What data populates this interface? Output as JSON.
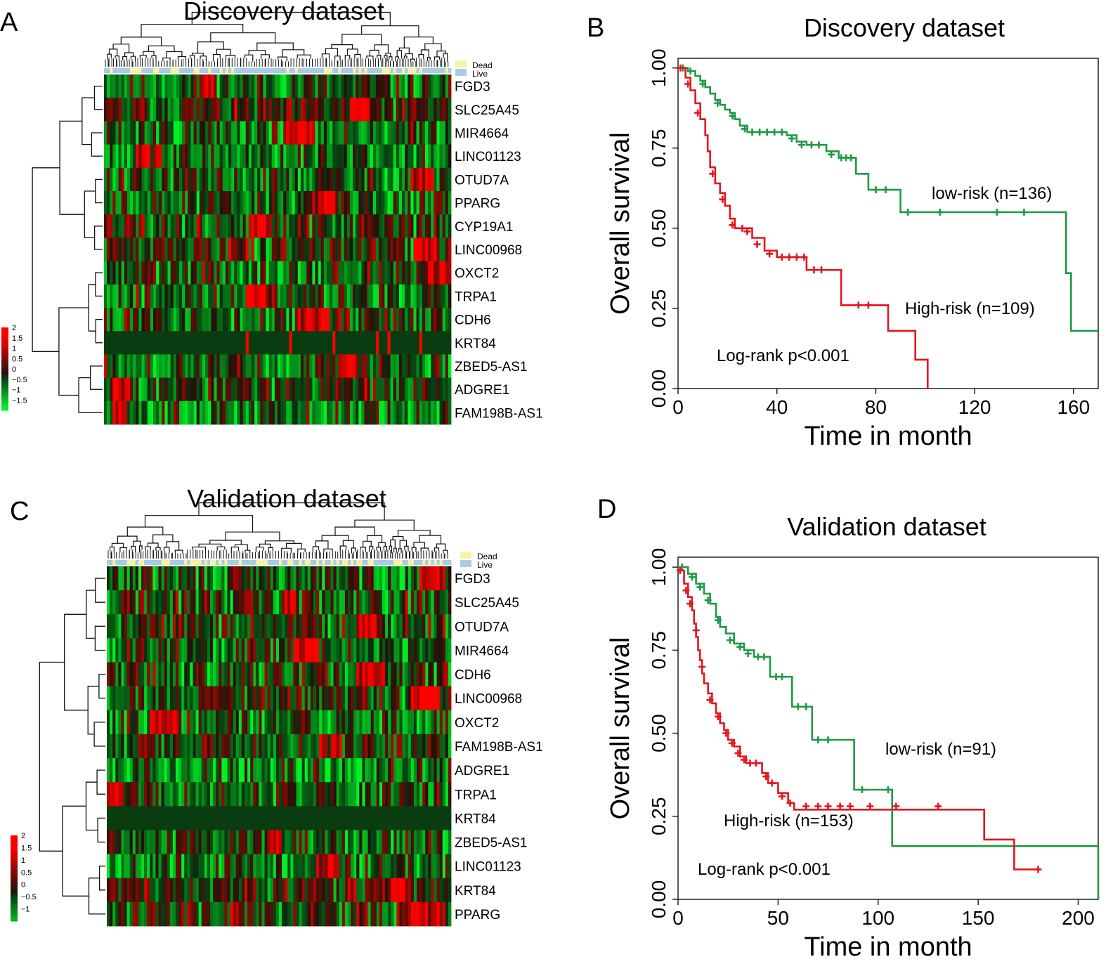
{
  "panels": {
    "A": {
      "letter": "A",
      "title": "Discovery dataset"
    },
    "B": {
      "letter": "B"
    },
    "C": {
      "letter": "C",
      "title": "Validation dataset"
    },
    "D": {
      "letter": "D"
    }
  },
  "heatmap_legend": {
    "dead": "Dead",
    "live": "Live"
  },
  "colors": {
    "high_risk": "#e4161e",
    "low_risk": "#1f9a45",
    "dead": "#f7f3a6",
    "live": "#a8cde3",
    "heat_high": "#ff1a1a",
    "heat_low": "#22ee22",
    "heat_mid": "#000000"
  },
  "chart_data": [
    {
      "type": "heatmap",
      "panel": "A",
      "title": "Discovery dataset",
      "rows": [
        "FGD3",
        "SLC25A45",
        "MIR4664",
        "LINC01123",
        "OTUD7A",
        "PPARG",
        "CYP19A1",
        "LINC00968",
        "OXCT2",
        "TRPA1",
        "CDH6",
        "KRT84",
        "ZBED5-AS1",
        "ADGRE1",
        "FAM198B-AS1"
      ],
      "color_scale": {
        "ticks": [
          "2",
          "1.5",
          "1",
          "0.5",
          "0",
          "−0.5",
          "−1",
          "−1.5"
        ],
        "range": [
          -1.5,
          2
        ]
      },
      "annotation_legend": [
        "Dead",
        "Live"
      ]
    },
    {
      "type": "line",
      "panel": "B",
      "title": "Discovery dataset",
      "xlabel": "Time in month",
      "ylabel": "Overall survival",
      "xlim": [
        0,
        170
      ],
      "ylim": [
        0,
        1.03
      ],
      "xticks": [
        0,
        40,
        80,
        120,
        160
      ],
      "xtick_labels": [
        "0",
        "40",
        "80",
        "120",
        "160"
      ],
      "yticks": [
        0,
        0.25,
        0.5,
        0.75,
        1
      ],
      "ytick_labels": [
        "0.00",
        "0.25",
        "0.50",
        "0.75",
        "1.00"
      ],
      "annotations": {
        "low_label": "low-risk (n=136)",
        "high_label": "High-risk (n=109)",
        "pvalue": "Log-rank p<0.001"
      },
      "series": [
        {
          "name": "low-risk (n=136)",
          "color": "#1f9a45",
          "steps": [
            [
              0,
              1.0
            ],
            [
              4,
              0.99
            ],
            [
              7,
              0.975
            ],
            [
              9,
              0.96
            ],
            [
              11,
              0.94
            ],
            [
              13,
              0.92
            ],
            [
              15,
              0.9
            ],
            [
              17,
              0.885
            ],
            [
              19,
              0.87
            ],
            [
              21,
              0.86
            ],
            [
              23,
              0.84
            ],
            [
              25,
              0.82
            ],
            [
              28,
              0.8
            ],
            [
              44,
              0.79
            ],
            [
              48,
              0.77
            ],
            [
              52,
              0.76
            ],
            [
              60,
              0.74
            ],
            [
              65,
              0.72
            ],
            [
              72,
              0.67
            ],
            [
              77,
              0.62
            ],
            [
              90,
              0.55
            ],
            [
              157,
              0.36
            ],
            [
              159,
              0.18
            ],
            [
              170,
              0.18
            ]
          ],
          "censors": [
            [
              2,
              1.0
            ],
            [
              5,
              0.99
            ],
            [
              10,
              0.95
            ],
            [
              16,
              0.89
            ],
            [
              22,
              0.85
            ],
            [
              27,
              0.81
            ],
            [
              30,
              0.8
            ],
            [
              33,
              0.8
            ],
            [
              36,
              0.8
            ],
            [
              39,
              0.8
            ],
            [
              42,
              0.8
            ],
            [
              46,
              0.78
            ],
            [
              50,
              0.76
            ],
            [
              54,
              0.76
            ],
            [
              57,
              0.76
            ],
            [
              62,
              0.73
            ],
            [
              66,
              0.72
            ],
            [
              68,
              0.72
            ],
            [
              70,
              0.72
            ],
            [
              80,
              0.62
            ],
            [
              84,
              0.62
            ],
            [
              93,
              0.55
            ],
            [
              106,
              0.55
            ],
            [
              129,
              0.55
            ],
            [
              140,
              0.55
            ]
          ]
        },
        {
          "name": "High-risk (n=109)",
          "color": "#e4161e",
          "steps": [
            [
              0,
              1.0
            ],
            [
              3,
              0.97
            ],
            [
              5,
              0.93
            ],
            [
              7,
              0.89
            ],
            [
              9,
              0.84
            ],
            [
              11,
              0.79
            ],
            [
              12,
              0.74
            ],
            [
              13,
              0.69
            ],
            [
              15,
              0.64
            ],
            [
              17,
              0.61
            ],
            [
              19,
              0.57
            ],
            [
              21,
              0.53
            ],
            [
              23,
              0.5
            ],
            [
              30,
              0.47
            ],
            [
              35,
              0.43
            ],
            [
              40,
              0.41
            ],
            [
              52,
              0.37
            ],
            [
              66,
              0.26
            ],
            [
              85,
              0.18
            ],
            [
              96,
              0.09
            ],
            [
              101,
              0.0
            ]
          ],
          "censors": [
            [
              1,
              1.0
            ],
            [
              4,
              0.95
            ],
            [
              8,
              0.86
            ],
            [
              14,
              0.67
            ],
            [
              18,
              0.59
            ],
            [
              22,
              0.51
            ],
            [
              26,
              0.5
            ],
            [
              28,
              0.49
            ],
            [
              32,
              0.45
            ],
            [
              37,
              0.42
            ],
            [
              42,
              0.41
            ],
            [
              45,
              0.41
            ],
            [
              48,
              0.41
            ],
            [
              51,
              0.41
            ],
            [
              55,
              0.37
            ],
            [
              58,
              0.37
            ],
            [
              73,
              0.26
            ],
            [
              77,
              0.26
            ]
          ]
        }
      ]
    },
    {
      "type": "heatmap",
      "panel": "C",
      "title": "Validation dataset",
      "rows": [
        "FGD3",
        "SLC25A45",
        "OTUD7A",
        "MIR4664",
        "CDH6",
        "LINC00968",
        "OXCT2",
        "FAM198B-AS1",
        "ADGRE1",
        "TRPA1",
        "KRT84",
        "ZBED5-AS1",
        "LINC01123",
        "KRT84",
        "PPARG"
      ],
      "color_scale": {
        "ticks": [
          "2",
          "1.5",
          "1",
          "0.5",
          "0",
          "−0.5",
          "−1"
        ],
        "range": [
          -1,
          2
        ]
      },
      "annotation_legend": [
        "Dead",
        "Live"
      ]
    },
    {
      "type": "line",
      "panel": "D",
      "title": "Validation dataset",
      "xlabel": "Time in month",
      "ylabel": "Overall survival",
      "xlim": [
        0,
        210
      ],
      "ylim": [
        0,
        1.03
      ],
      "xticks": [
        0,
        50,
        100,
        150,
        200
      ],
      "xtick_labels": [
        "0",
        "50",
        "100",
        "150",
        "200"
      ],
      "yticks": [
        0,
        0.25,
        0.5,
        0.75,
        1
      ],
      "ytick_labels": [
        "0.00",
        "0.25",
        "0.50",
        "0.75",
        "1.00"
      ],
      "annotations": {
        "low_label": "low-risk (n=91)",
        "high_label": "High-risk (n=153)",
        "pvalue": "Log-rank p<0.001"
      },
      "series": [
        {
          "name": "low-risk (n=91)",
          "color": "#1f9a45",
          "steps": [
            [
              0,
              1.0
            ],
            [
              5,
              0.98
            ],
            [
              9,
              0.95
            ],
            [
              13,
              0.92
            ],
            [
              16,
              0.89
            ],
            [
              19,
              0.85
            ],
            [
              21,
              0.82
            ],
            [
              24,
              0.8
            ],
            [
              28,
              0.77
            ],
            [
              33,
              0.75
            ],
            [
              38,
              0.73
            ],
            [
              46,
              0.67
            ],
            [
              57,
              0.58
            ],
            [
              67,
              0.48
            ],
            [
              88,
              0.33
            ],
            [
              107,
              0.16
            ],
            [
              210,
              0.0
            ]
          ],
          "censors": [
            [
              2,
              1.0
            ],
            [
              7,
              0.97
            ],
            [
              11,
              0.94
            ],
            [
              15,
              0.9
            ],
            [
              20,
              0.84
            ],
            [
              26,
              0.78
            ],
            [
              31,
              0.76
            ],
            [
              35,
              0.74
            ],
            [
              40,
              0.73
            ],
            [
              43,
              0.73
            ],
            [
              49,
              0.67
            ],
            [
              52,
              0.67
            ],
            [
              60,
              0.58
            ],
            [
              64,
              0.58
            ],
            [
              70,
              0.48
            ],
            [
              75,
              0.48
            ],
            [
              92,
              0.33
            ],
            [
              105,
              0.33
            ]
          ]
        },
        {
          "name": "High-risk (n=153)",
          "color": "#e4161e",
          "steps": [
            [
              0,
              0.99
            ],
            [
              3,
              0.95
            ],
            [
              5,
              0.91
            ],
            [
              7,
              0.87
            ],
            [
              8,
              0.83
            ],
            [
              9,
              0.79
            ],
            [
              10,
              0.75
            ],
            [
              11,
              0.72
            ],
            [
              12,
              0.68
            ],
            [
              13,
              0.65
            ],
            [
              15,
              0.62
            ],
            [
              17,
              0.59
            ],
            [
              19,
              0.56
            ],
            [
              21,
              0.53
            ],
            [
              23,
              0.51
            ],
            [
              25,
              0.48
            ],
            [
              28,
              0.46
            ],
            [
              31,
              0.43
            ],
            [
              34,
              0.41
            ],
            [
              42,
              0.38
            ],
            [
              45,
              0.35
            ],
            [
              50,
              0.32
            ],
            [
              55,
              0.29
            ],
            [
              58,
              0.27
            ],
            [
              153,
              0.18
            ],
            [
              168,
              0.09
            ],
            [
              180,
              0.09
            ]
          ],
          "censors": [
            [
              1,
              0.99
            ],
            [
              4,
              0.93
            ],
            [
              6,
              0.89
            ],
            [
              9,
              0.81
            ],
            [
              12,
              0.7
            ],
            [
              16,
              0.6
            ],
            [
              20,
              0.55
            ],
            [
              24,
              0.5
            ],
            [
              27,
              0.47
            ],
            [
              30,
              0.44
            ],
            [
              33,
              0.42
            ],
            [
              36,
              0.41
            ],
            [
              39,
              0.41
            ],
            [
              44,
              0.37
            ],
            [
              47,
              0.35
            ],
            [
              52,
              0.31
            ],
            [
              56,
              0.29
            ],
            [
              64,
              0.28
            ],
            [
              70,
              0.28
            ],
            [
              75,
              0.28
            ],
            [
              81,
              0.28
            ],
            [
              86,
              0.28
            ],
            [
              96,
              0.28
            ],
            [
              109,
              0.28
            ],
            [
              130,
              0.28
            ],
            [
              180,
              0.09
            ]
          ]
        }
      ]
    }
  ]
}
